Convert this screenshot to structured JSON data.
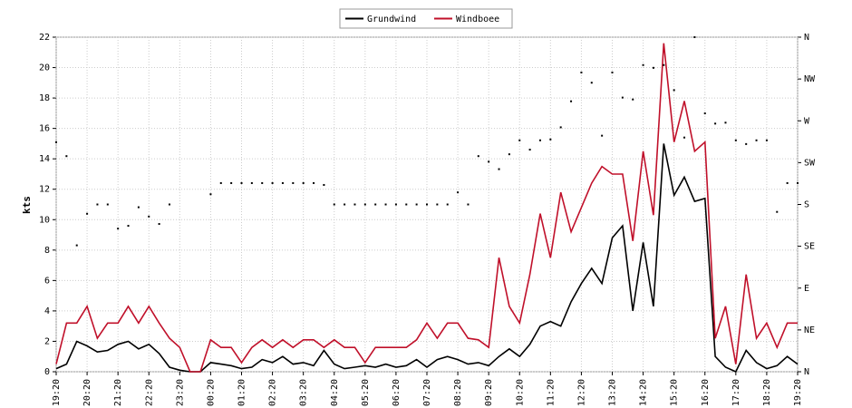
{
  "chart_data": {
    "type": "line",
    "ylabel": "kts",
    "categories": [
      "19:20",
      null,
      null,
      "20:20",
      null,
      null,
      "21:20",
      null,
      null,
      "22:20",
      null,
      null,
      "23:20",
      null,
      null,
      "00:20",
      null,
      null,
      "01:20",
      null,
      null,
      "02:20",
      null,
      null,
      "03:20",
      null,
      null,
      "04:20",
      null,
      null,
      "05:20",
      null,
      null,
      "06:20",
      null,
      null,
      "07:20",
      null,
      null,
      "08:20",
      null,
      null,
      "09:20",
      null,
      null,
      "10:20",
      null,
      null,
      "11:20",
      null,
      null,
      "12:20",
      null,
      null,
      "13:20",
      null,
      null,
      "14:20",
      null,
      null,
      "15:20",
      null,
      null,
      "16:20",
      null,
      null,
      "17:20",
      null,
      null,
      "18:20",
      null,
      null,
      "19:20"
    ],
    "ylim": [
      0,
      22
    ],
    "yticks": [
      0,
      2,
      4,
      6,
      8,
      10,
      12,
      14,
      16,
      18,
      20,
      22
    ],
    "y2lim": [
      0,
      360
    ],
    "y2ticks": [
      {
        "value": 0,
        "label": "N"
      },
      {
        "value": 45,
        "label": "NE"
      },
      {
        "value": 90,
        "label": "E"
      },
      {
        "value": 135,
        "label": "SE"
      },
      {
        "value": 180,
        "label": "S"
      },
      {
        "value": 225,
        "label": "SW"
      },
      {
        "value": 270,
        "label": "W"
      },
      {
        "value": 315,
        "label": "NW"
      },
      {
        "value": 360,
        "label": "N"
      }
    ],
    "grid": true,
    "legend": "top",
    "series": [
      {
        "name": "Grundwind",
        "color": "#000000",
        "values": [
          0.2,
          0.5,
          2.0,
          1.7,
          1.3,
          1.4,
          1.8,
          2.0,
          1.5,
          1.8,
          1.2,
          0.3,
          0.1,
          0,
          0,
          0.6,
          0.5,
          0.4,
          0.2,
          0.3,
          0.8,
          0.6,
          1.0,
          0.5,
          0.6,
          0.4,
          1.4,
          0.5,
          0.2,
          0.3,
          0.4,
          0.3,
          0.5,
          0.3,
          0.4,
          0.8,
          0.3,
          0.8,
          1.0,
          0.8,
          0.5,
          0.6,
          0.4,
          1.0,
          1.5,
          1.0,
          1.8,
          3.0,
          3.3,
          3.0,
          4.6,
          5.8,
          6.8,
          5.8,
          8.8,
          9.6,
          4.0,
          8.5,
          4.3,
          15.0,
          11.6,
          12.8,
          11.2,
          11.4,
          1.0,
          0.3,
          0.0,
          1.4,
          0.6,
          0.2,
          0.4,
          1.0,
          0.5
        ]
      },
      {
        "name": "Windboee",
        "color": "#c0102a",
        "values": [
          0.5,
          3.2,
          3.2,
          4.3,
          2.2,
          3.2,
          3.2,
          4.3,
          3.2,
          4.3,
          3.2,
          2.2,
          1.6,
          0,
          0,
          2.1,
          1.6,
          1.6,
          0.6,
          1.6,
          2.1,
          1.6,
          2.1,
          1.6,
          2.1,
          2.1,
          1.6,
          2.1,
          1.6,
          1.6,
          0.6,
          1.6,
          1.6,
          1.6,
          1.6,
          2.1,
          3.2,
          2.2,
          3.2,
          3.2,
          2.2,
          2.1,
          1.6,
          7.5,
          4.3,
          3.2,
          6.4,
          10.4,
          7.5,
          11.8,
          9.2,
          10.8,
          12.4,
          13.5,
          13.0,
          13.0,
          8.6,
          14.5,
          10.3,
          21.6,
          15.1,
          17.8,
          14.5,
          15.1,
          2.2,
          4.3,
          0.5,
          6.4,
          2.2,
          3.2,
          1.6,
          3.2,
          3.2
        ]
      },
      {
        "type": "dots",
        "axis": "y2",
        "color": "#000000",
        "values": [
          247,
          232,
          136,
          170,
          180,
          180,
          154,
          157,
          177,
          167,
          159,
          180,
          null,
          null,
          null,
          191,
          203,
          203,
          203,
          203,
          203,
          203,
          203,
          203,
          203,
          203,
          201,
          180,
          180,
          180,
          180,
          180,
          180,
          180,
          180,
          180,
          180,
          180,
          180,
          193,
          180,
          232,
          226,
          218,
          234,
          249,
          239,
          249,
          250,
          263,
          291,
          322,
          311,
          254,
          322,
          295,
          293,
          330,
          327,
          330,
          303,
          252,
          360,
          278,
          267,
          268,
          249,
          245,
          249,
          249,
          172,
          203,
          203
        ]
      }
    ]
  }
}
